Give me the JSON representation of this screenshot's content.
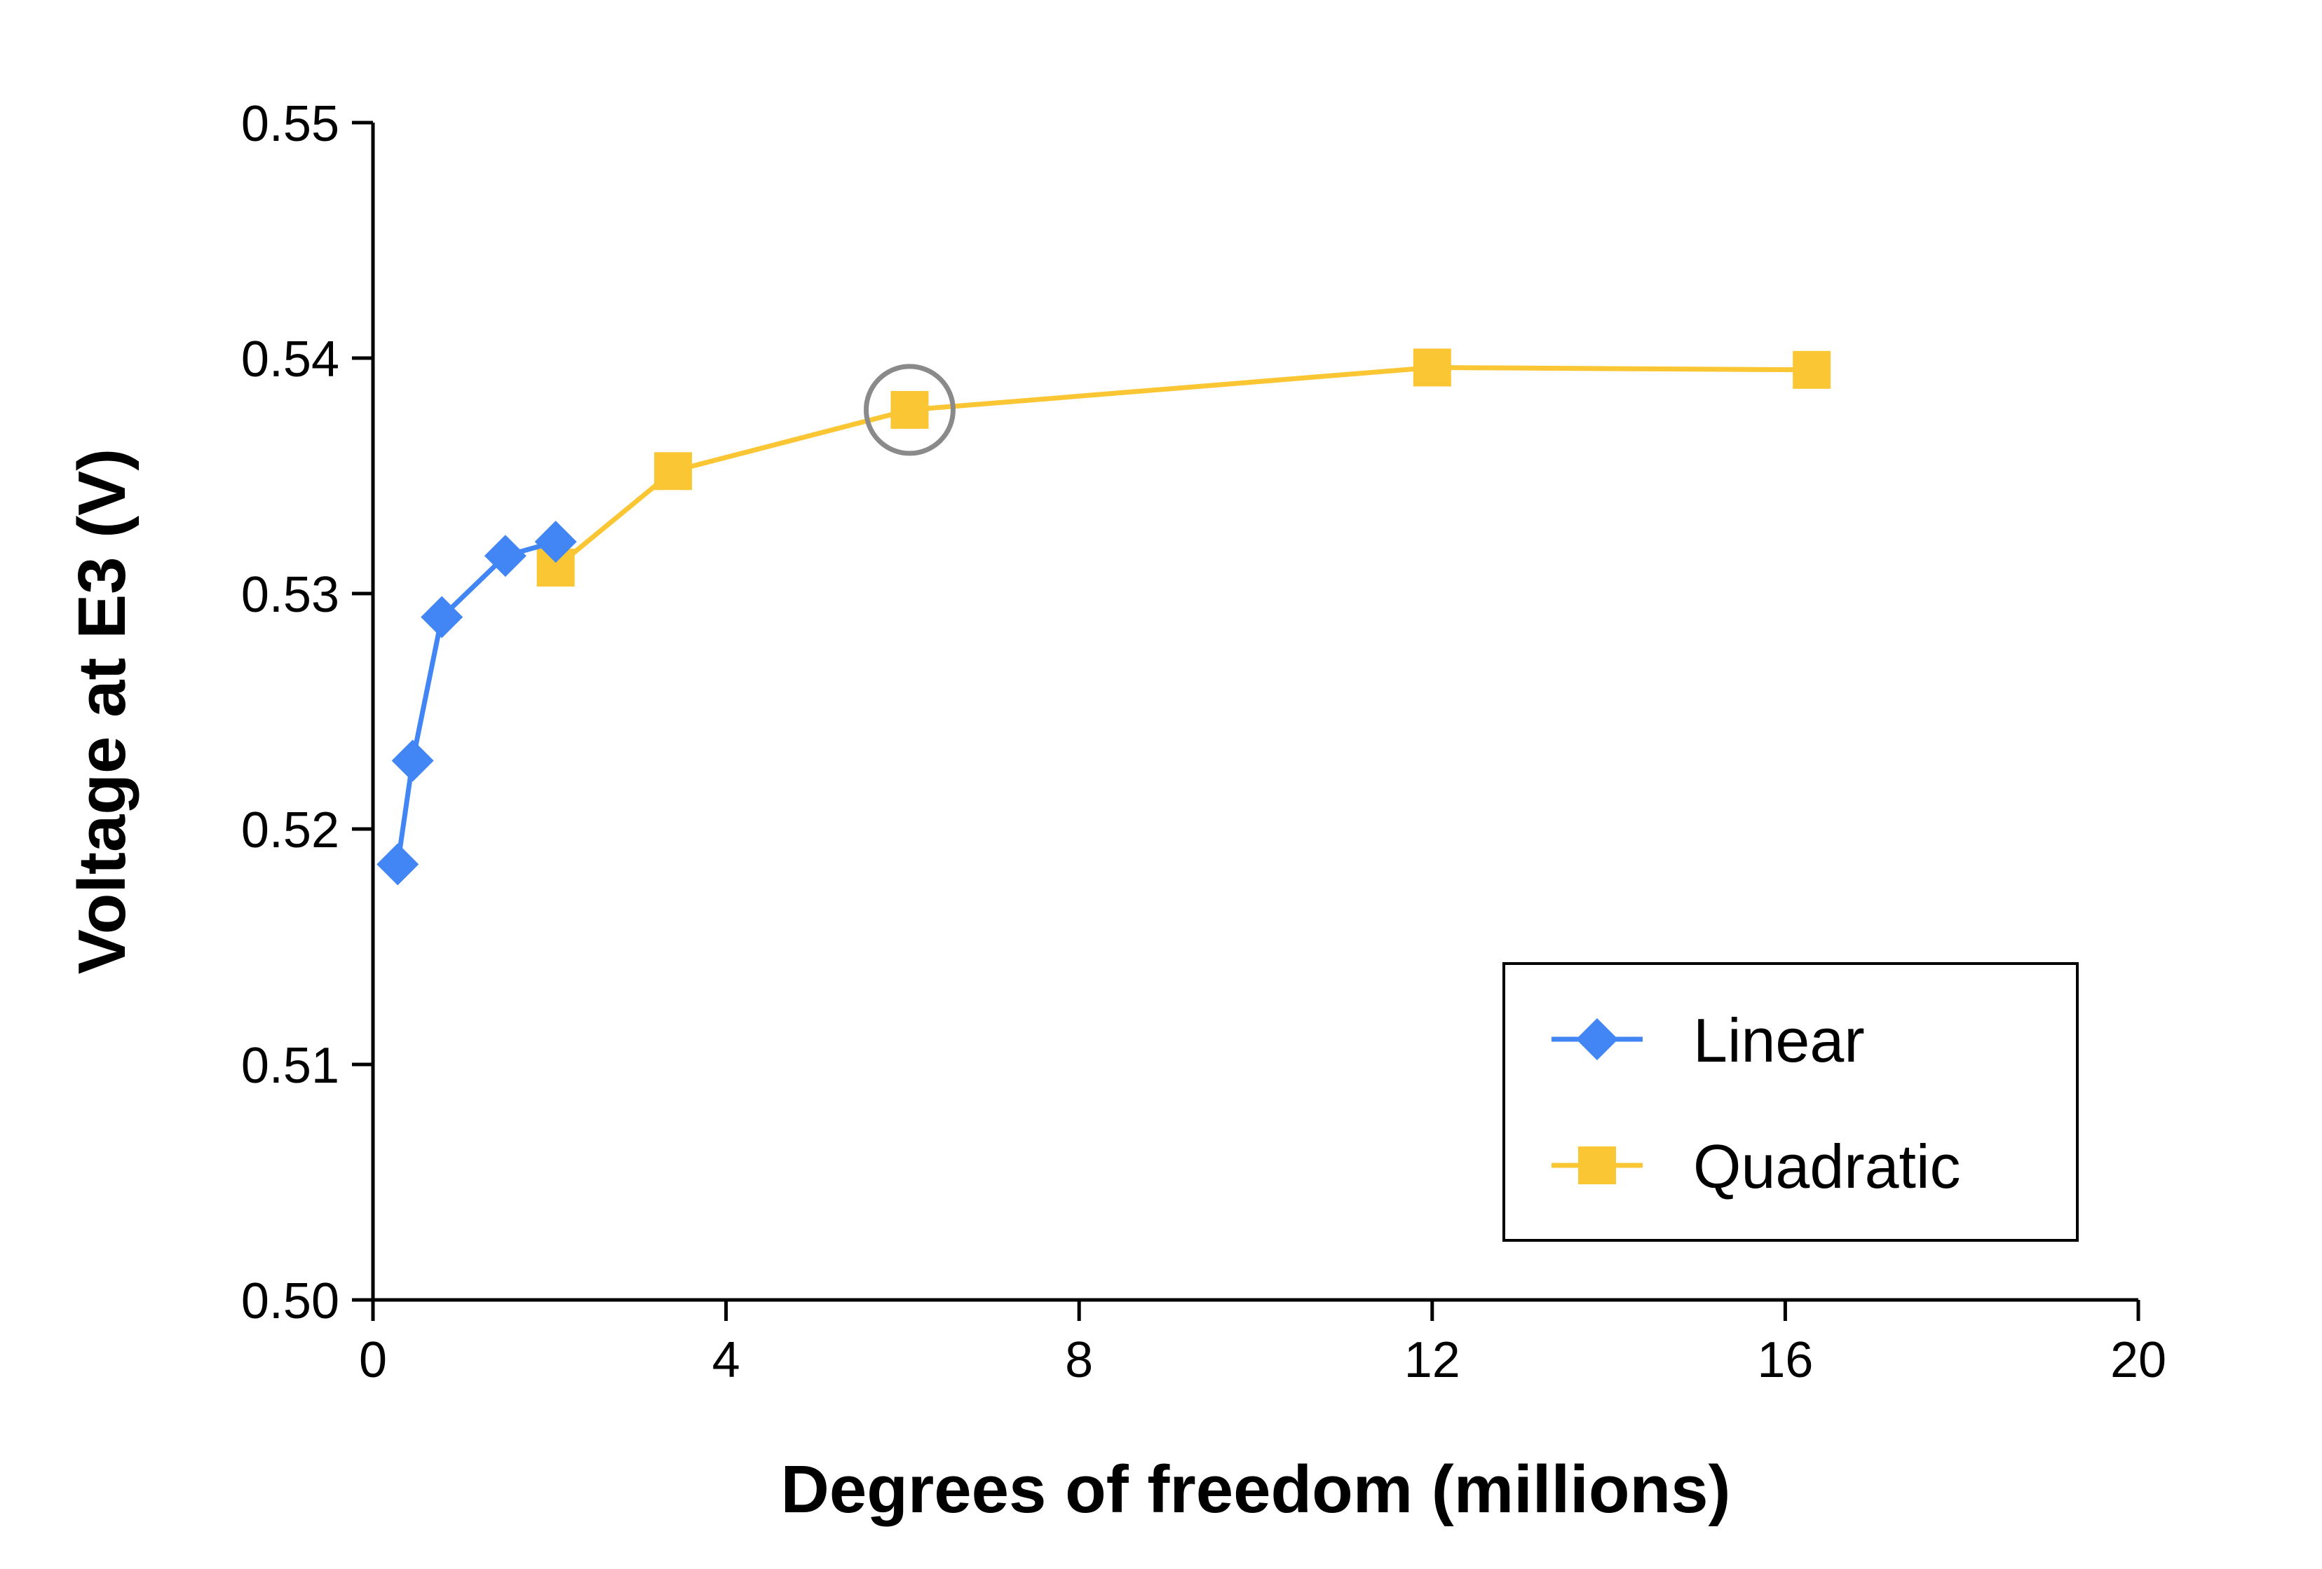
{
  "chart_data": {
    "type": "line",
    "title": "",
    "xlabel": "Degrees of freedom (millions)",
    "ylabel": "Voltage at  E3 (V)",
    "xlim": [
      0,
      20
    ],
    "ylim": [
      0.5,
      0.55
    ],
    "xticks": [
      0,
      4,
      8,
      12,
      16,
      20
    ],
    "xtick_labels": [
      "0",
      "4",
      "8",
      "12",
      "16",
      "20"
    ],
    "yticks": [
      0.5,
      0.51,
      0.52,
      0.53,
      0.54,
      0.55
    ],
    "ytick_labels": [
      "0.50",
      "0.51",
      "0.52",
      "0.53",
      "0.54",
      "0.55"
    ],
    "grid": false,
    "legend_position": "bottom-right",
    "series": [
      {
        "name": "Linear",
        "marker": "diamond",
        "color": "#4285F4",
        "x": [
          0.28,
          0.45,
          0.78,
          1.5,
          2.07
        ],
        "y": [
          0.5185,
          0.5229,
          0.529,
          0.5316,
          0.5322
        ]
      },
      {
        "name": "Quadratic",
        "marker": "square",
        "color": "#FBC633",
        "x": [
          2.07,
          3.4,
          6.08,
          12.0,
          16.3
        ],
        "y": [
          0.5311,
          0.5352,
          0.5378,
          0.5396,
          0.5395
        ]
      }
    ],
    "annotations": [
      {
        "type": "circle",
        "x": 6.08,
        "y": 0.5378,
        "color": "#8a8a8a"
      }
    ]
  }
}
